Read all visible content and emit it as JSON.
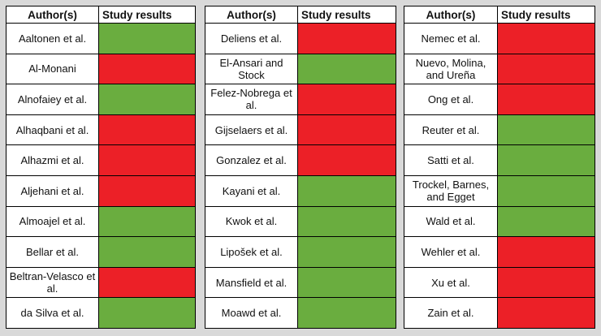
{
  "headers": {
    "author": "Author(s)",
    "results": "Study results"
  },
  "colors": {
    "green": "#6aad3f",
    "red": "#ec2027"
  },
  "panels": [
    {
      "rows": [
        {
          "author": "Aaltonen et al.",
          "result": "green"
        },
        {
          "author": "Al-Monani",
          "result": "red"
        },
        {
          "author": "Alnofaiey et al.",
          "result": "green"
        },
        {
          "author": "Alhaqbani et al.",
          "result": "red"
        },
        {
          "author": "Alhazmi et al.",
          "result": "red"
        },
        {
          "author": "Aljehani et al.",
          "result": "red"
        },
        {
          "author": "Almoajel et al.",
          "result": "green"
        },
        {
          "author": "Bellar et al.",
          "result": "green"
        },
        {
          "author": "Beltran-Velasco et al.",
          "result": "red"
        },
        {
          "author": "da Silva et al.",
          "result": "green"
        }
      ]
    },
    {
      "rows": [
        {
          "author": "Deliens et al.",
          "result": "red"
        },
        {
          "author": "El-Ansari and Stock",
          "result": "green"
        },
        {
          "author": "Felez-Nobrega et al.",
          "result": "red"
        },
        {
          "author": "Gijselaers et al.",
          "result": "red"
        },
        {
          "author": "Gonzalez et al.",
          "result": "red"
        },
        {
          "author": "Kayani et al.",
          "result": "green"
        },
        {
          "author": "Kwok et al.",
          "result": "green"
        },
        {
          "author": "Lipošek et al.",
          "result": "green"
        },
        {
          "author": "Mansfield et al.",
          "result": "green"
        },
        {
          "author": "Moawd et al.",
          "result": "green"
        }
      ]
    },
    {
      "rows": [
        {
          "author": "Nemec et al.",
          "result": "red"
        },
        {
          "author": "Nuevo, Molina, and Ureña",
          "result": "red"
        },
        {
          "author": "Ong et al.",
          "result": "red"
        },
        {
          "author": "Reuter et al.",
          "result": "green"
        },
        {
          "author": "Satti et al.",
          "result": "green"
        },
        {
          "author": "Trockel, Barnes, and Egget",
          "result": "green"
        },
        {
          "author": "Wald et al.",
          "result": "green"
        },
        {
          "author": "Wehler et al.",
          "result": "red"
        },
        {
          "author": "Xu et al.",
          "result": "red"
        },
        {
          "author": "Zain et al.",
          "result": "red"
        }
      ]
    }
  ]
}
